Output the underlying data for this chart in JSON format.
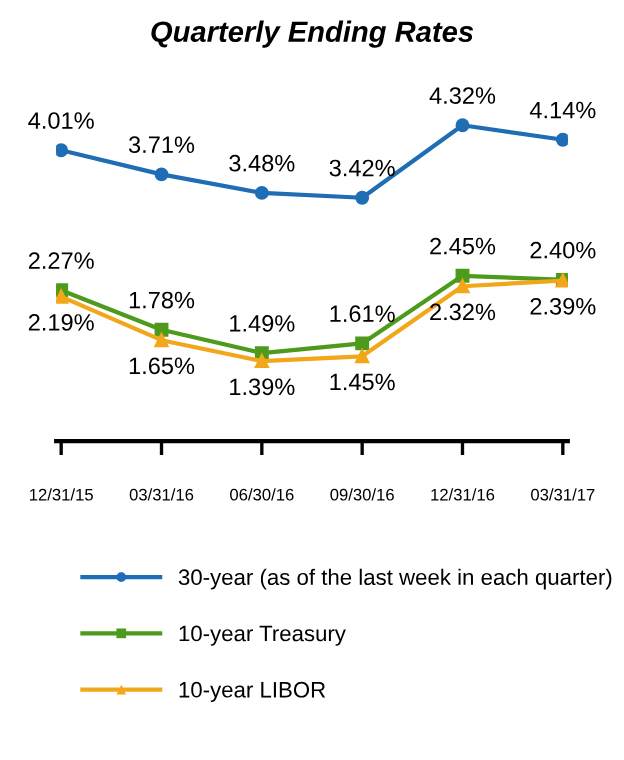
{
  "chart_data": {
    "type": "line",
    "title": "Quarterly Ending Rates",
    "categories": [
      "12/31/15",
      "03/31/16",
      "06/30/16",
      "09/30/16",
      "12/31/16",
      "03/31/17"
    ],
    "series": [
      {
        "name": "30-year (as of the last week in each quarter)",
        "color": "#1f6db5",
        "marker": "circle",
        "values": [
          4.01,
          3.71,
          3.48,
          3.42,
          4.32,
          4.14
        ],
        "value_labels": [
          "4.01%",
          "3.71%",
          "3.48%",
          "3.42%",
          "4.32%",
          "4.14%"
        ]
      },
      {
        "name": "10-year Treasury",
        "color": "#4e9a1c",
        "marker": "square",
        "values": [
          2.27,
          1.78,
          1.49,
          1.61,
          2.45,
          2.4
        ],
        "value_labels": [
          "2.27%",
          "1.78%",
          "1.49%",
          "1.61%",
          "2.45%",
          "2.40%"
        ]
      },
      {
        "name": "10-year LIBOR",
        "color": "#f2a71b",
        "marker": "triangle",
        "values": [
          2.19,
          1.65,
          1.39,
          1.45,
          2.32,
          2.39
        ],
        "value_labels": [
          "2.19%",
          "1.65%",
          "1.39%",
          "1.45%",
          "2.32%",
          "2.39%"
        ]
      }
    ],
    "legend": "bottom",
    "grid": false
  }
}
